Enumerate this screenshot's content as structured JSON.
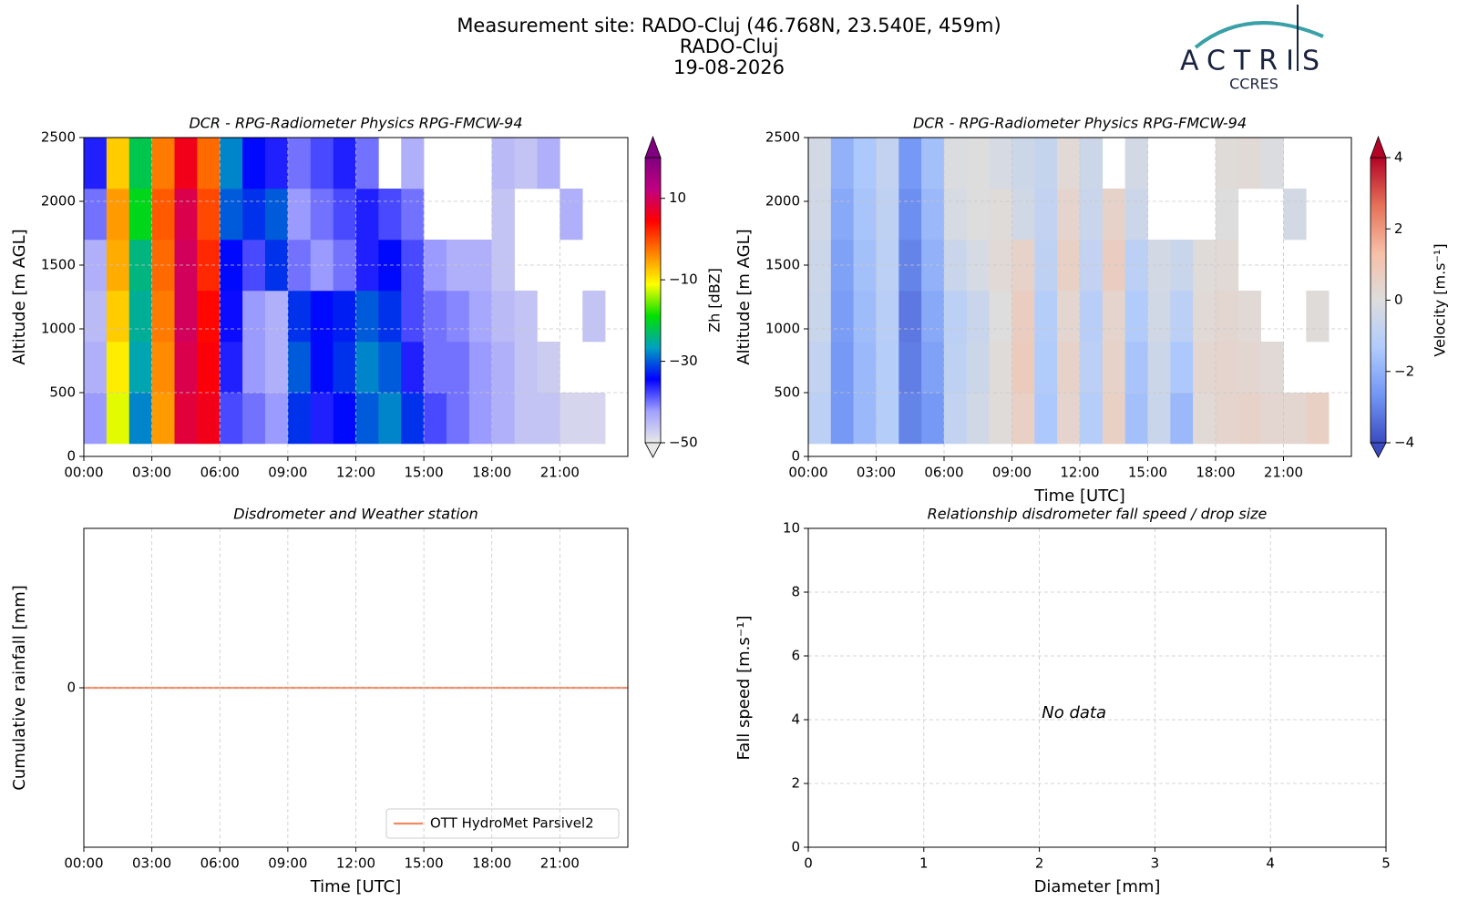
{
  "header": {
    "title_lines": [
      "Measurement site: RADO-Cluj (46.768N, 23.540E, 459m)",
      "RADO-Cluj",
      "19-08-2026"
    ],
    "logo": "ACTRIS",
    "logo_sub": "CCRES"
  },
  "chart_data": [
    {
      "type": "heatmap",
      "title": "DCR - RPG-Radiometer Physics RPG-FMCW-94",
      "ylabel": "Altitude [m AGL]",
      "xlim": [
        0,
        24
      ],
      "ylim": [
        0,
        2500
      ],
      "grid": true,
      "xticks": [
        {
          "value": 0,
          "label": "00:00"
        },
        {
          "value": 3,
          "label": "03:00"
        },
        {
          "value": 6,
          "label": "06:00"
        },
        {
          "value": 9,
          "label": "09:00"
        },
        {
          "value": 12,
          "label": "12:00"
        },
        {
          "value": 15,
          "label": "15:00"
        },
        {
          "value": 18,
          "label": "18:00"
        },
        {
          "value": 21,
          "label": "21:00"
        }
      ],
      "yticks": [
        0,
        500,
        1000,
        1500,
        2000,
        2500
      ],
      "x_edges": [
        0,
        1,
        2,
        3,
        4,
        5,
        6,
        7,
        8,
        9,
        10,
        11,
        12,
        13,
        14,
        15,
        16,
        17,
        18,
        19,
        20,
        21,
        22,
        23,
        24
      ],
      "y_edges": [
        100,
        500,
        900,
        1300,
        1700,
        2100,
        2500
      ],
      "z": [
        [
          -42,
          -12,
          -28,
          -5,
          8,
          6,
          -38,
          -40,
          -42,
          -32,
          -36,
          -34,
          -30,
          -28,
          -32,
          -38,
          -40,
          -42,
          -44,
          -46,
          -46,
          -48,
          -48,
          null
        ],
        [
          -44,
          -10,
          -26,
          -4,
          9,
          5,
          -36,
          -42,
          -44,
          -30,
          -34,
          -32,
          -28,
          -30,
          -36,
          -40,
          -40,
          -42,
          -44,
          -46,
          -47,
          null,
          null,
          null
        ],
        [
          -45,
          -8,
          -25,
          -3,
          10,
          4,
          -35,
          -42,
          -44,
          -32,
          -34,
          -33,
          -30,
          -32,
          -38,
          -40,
          -41,
          -43,
          -45,
          -46,
          null,
          null,
          -46,
          null
        ],
        [
          -44,
          -6,
          -24,
          -2,
          10,
          2,
          -34,
          -38,
          -32,
          -40,
          -42,
          -40,
          -36,
          -34,
          -38,
          -42,
          -44,
          -44,
          -46,
          null,
          null,
          null,
          null,
          null
        ],
        [
          -40,
          -5,
          -20,
          -1,
          9,
          0,
          -30,
          -32,
          -30,
          -42,
          -40,
          -38,
          -36,
          -38,
          -40,
          null,
          null,
          null,
          -46,
          null,
          null,
          -44,
          null,
          null
        ],
        [
          -36,
          -8,
          -22,
          -3,
          6,
          -2,
          -28,
          -34,
          -36,
          -40,
          -38,
          -36,
          -40,
          null,
          -44,
          null,
          null,
          null,
          -45,
          -46,
          -44,
          null,
          null,
          null
        ]
      ],
      "colormap": [
        "#e8e8e8",
        "#a0a0ff",
        "#0000ff",
        "#00a0c0",
        "#00e000",
        "#ffff00",
        "#ff8000",
        "#ff0000",
        "#c00080",
        "#800080"
      ],
      "clim": [
        -50,
        20
      ],
      "clabel": "Zh [dBZ]",
      "cticks": [
        {
          "value": -50,
          "label": "−50"
        },
        {
          "value": -30,
          "label": "−30"
        },
        {
          "value": -10,
          "label": "−10"
        },
        10
      ]
    },
    {
      "type": "heatmap",
      "title": "DCR - RPG-Radiometer Physics RPG-FMCW-94",
      "ylabel": "Altitude [m AGL]",
      "xlabel": "Time [UTC]",
      "xlim": [
        0,
        24
      ],
      "ylim": [
        0,
        2500
      ],
      "grid": true,
      "xticks": [
        {
          "value": 0,
          "label": "00:00"
        },
        {
          "value": 3,
          "label": "03:00"
        },
        {
          "value": 6,
          "label": "06:00"
        },
        {
          "value": 9,
          "label": "09:00"
        },
        {
          "value": 12,
          "label": "12:00"
        },
        {
          "value": 15,
          "label": "15:00"
        },
        {
          "value": 18,
          "label": "18:00"
        },
        {
          "value": 21,
          "label": "21:00"
        }
      ],
      "yticks": [
        0,
        500,
        1000,
        1500,
        2000,
        2500
      ],
      "x_edges": [
        0,
        1,
        2,
        3,
        4,
        5,
        6,
        7,
        8,
        9,
        10,
        11,
        12,
        13,
        14,
        15,
        16,
        17,
        18,
        19,
        20,
        21,
        22,
        23,
        24
      ],
      "y_edges": [
        100,
        500,
        900,
        1300,
        1700,
        2100,
        2500
      ],
      "z": [
        [
          -1,
          -2.6,
          -1.8,
          -1.2,
          -3,
          -2.6,
          -0.8,
          -0.4,
          0.1,
          0.6,
          -1.4,
          0.4,
          -1.2,
          0.6,
          -1.6,
          -0.6,
          -1.8,
          0.2,
          0.4,
          0.5,
          0.3,
          0.3,
          0.6,
          null
        ],
        [
          -0.8,
          -2.6,
          -1.8,
          -1.2,
          -3.1,
          -2.4,
          -0.9,
          -0.5,
          0.1,
          0.8,
          -1.3,
          0.5,
          -1,
          0.5,
          -1.5,
          -0.5,
          -1.4,
          0.3,
          0.4,
          0.3,
          0.2,
          null,
          null,
          null
        ],
        [
          -0.6,
          -2.5,
          -1.7,
          -1.1,
          -3.2,
          -2.2,
          -1,
          -0.6,
          0,
          0.7,
          -1.2,
          0.3,
          -1.1,
          0.4,
          -1.3,
          -0.4,
          -1,
          0.2,
          0.3,
          0.2,
          null,
          null,
          0.1,
          null
        ],
        [
          -0.5,
          -2.4,
          -1.6,
          -1,
          -3,
          -2,
          -0.6,
          -0.2,
          0.2,
          0.5,
          -0.9,
          0.6,
          -0.8,
          0.7,
          -1,
          -0.3,
          -0.6,
          0.1,
          0.2,
          null,
          null,
          null,
          null,
          null
        ],
        [
          -0.4,
          -2.2,
          -1.5,
          -0.9,
          -2.8,
          -1.8,
          -0.2,
          0,
          0.1,
          -0.4,
          -0.8,
          0.4,
          -0.6,
          0.5,
          -0.5,
          null,
          null,
          null,
          0,
          null,
          null,
          -0.3,
          null,
          null
        ],
        [
          -0.3,
          -2,
          -1.4,
          -0.8,
          -2.6,
          -1.6,
          -0.1,
          0,
          -0.2,
          -0.5,
          -0.7,
          0.2,
          -0.5,
          null,
          -0.3,
          null,
          null,
          null,
          0.1,
          0.2,
          -0.1,
          null,
          null,
          null
        ]
      ],
      "colormap": [
        "#3b4cc0",
        "#7396f5",
        "#b0cbfc",
        "#dddddd",
        "#f6bfa6",
        "#e57058",
        "#b40426"
      ],
      "clim": [
        -4,
        4
      ],
      "clabel": "Velocity [m.s⁻¹]",
      "cticks": [
        {
          "value": -4,
          "label": "−4"
        },
        {
          "value": -2,
          "label": "−2"
        },
        0,
        2,
        4
      ]
    },
    {
      "type": "line",
      "title": "Disdrometer and Weather station",
      "ylabel": "Cumulative rainfall [mm]",
      "xlabel": "Time [UTC]",
      "xlim": [
        0,
        24
      ],
      "ylim": [
        -0.055,
        0.055
      ],
      "grid": true,
      "xticks": [
        {
          "value": 0,
          "label": "00:00"
        },
        {
          "value": 3,
          "label": "03:00"
        },
        {
          "value": 6,
          "label": "06:00"
        },
        {
          "value": 9,
          "label": "09:00"
        },
        {
          "value": 12,
          "label": "12:00"
        },
        {
          "value": 15,
          "label": "15:00"
        },
        {
          "value": 18,
          "label": "18:00"
        },
        {
          "value": 21,
          "label": "21:00"
        }
      ],
      "yticks": [
        0
      ],
      "legend": "lower right",
      "series": [
        {
          "name": "OTT HydroMet Parsivel2",
          "color": "#ef8a62",
          "x": [
            0,
            24
          ],
          "values": [
            0,
            0
          ]
        }
      ]
    },
    {
      "type": "scatter",
      "title": "Relationship disdrometer fall speed / drop size",
      "ylabel": "Fall speed [m.s⁻¹]",
      "xlabel": "Diameter [mm]",
      "xlim": [
        0,
        5
      ],
      "ylim": [
        0,
        10
      ],
      "grid": true,
      "xticks": [
        0,
        1,
        2,
        3,
        4,
        5
      ],
      "yticks": [
        0,
        2,
        4,
        6,
        8,
        10
      ],
      "annotation": "No data"
    }
  ]
}
